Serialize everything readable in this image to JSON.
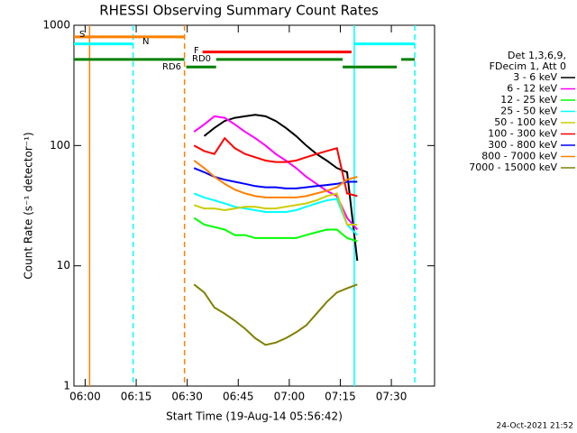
{
  "chart_data": {
    "type": "line",
    "title": "RHESSI Observing Summary Count Rates",
    "x_label": "Start Time (19-Aug-14 05:56:42)",
    "y_label": "Count Rate (s⁻¹ detector⁻¹)",
    "log_y": true,
    "xlim": [
      356.7,
      462.7
    ],
    "ylim": [
      1,
      1000
    ],
    "xticks": [
      {
        "value": 360,
        "label": "06:00"
      },
      {
        "value": 375,
        "label": "06:15"
      },
      {
        "value": 390,
        "label": "06:30"
      },
      {
        "value": 405,
        "label": "06:45"
      },
      {
        "value": 420,
        "label": "07:00"
      },
      {
        "value": 435,
        "label": "07:15"
      },
      {
        "value": 450,
        "label": "07:30"
      }
    ],
    "yticks": [
      1,
      10,
      100,
      1000
    ],
    "legend_header": [
      "Det 1,3,6,9,",
      "FDecim 1, Att 0"
    ],
    "x": [
      392,
      395,
      398,
      401,
      404,
      407,
      410,
      413,
      416,
      419,
      422,
      425,
      428,
      431,
      434,
      437,
      440,
      443
    ],
    "series": [
      {
        "name": "3 - 6 keV",
        "color": "#000000",
        "values": [
          null,
          120,
          140,
          160,
          170,
          175,
          180,
          175,
          160,
          140,
          120,
          100,
          85,
          75,
          65,
          60,
          11,
          null
        ]
      },
      {
        "name": "6 - 12 keV",
        "color": "#ff00ff",
        "values": [
          130,
          150,
          175,
          170,
          150,
          130,
          115,
          100,
          85,
          75,
          65,
          55,
          48,
          42,
          38,
          25,
          20,
          null
        ]
      },
      {
        "name": "12 - 25 keV",
        "color": "#00ff00",
        "values": [
          25,
          22,
          21,
          20,
          18,
          18,
          17,
          17,
          17,
          17,
          17,
          18,
          19,
          20,
          20,
          17,
          16,
          null
        ]
      },
      {
        "name": "25 - 50 keV",
        "color": "#00ffff",
        "values": [
          40,
          37,
          35,
          33,
          31,
          30,
          29,
          28,
          28,
          28,
          29,
          31,
          33,
          35,
          36,
          22,
          18,
          null
        ]
      },
      {
        "name": "50 - 100 keV",
        "color": "#cccc00",
        "values": [
          32,
          30,
          30,
          29,
          30,
          31,
          31,
          30,
          30,
          31,
          32,
          33,
          35,
          38,
          40,
          22,
          22,
          null
        ]
      },
      {
        "name": "100 - 300 keV",
        "color": "#ff0000",
        "values": [
          100,
          90,
          85,
          115,
          95,
          85,
          80,
          75,
          73,
          73,
          75,
          80,
          85,
          90,
          95,
          40,
          38,
          null
        ]
      },
      {
        "name": "300 - 800 keV",
        "color": "#0000ff",
        "values": [
          65,
          60,
          55,
          52,
          50,
          48,
          46,
          45,
          45,
          44,
          44,
          45,
          46,
          47,
          48,
          50,
          50,
          null
        ]
      },
      {
        "name": "800 - 7000 keV",
        "color": "#ff8000",
        "values": [
          75,
          65,
          55,
          48,
          43,
          40,
          38,
          37,
          37,
          37,
          37,
          38,
          40,
          42,
          45,
          52,
          55,
          null
        ]
      },
      {
        "name": "7000 - 15000 keV",
        "color": "#808000",
        "values": [
          7,
          6,
          4.5,
          4,
          3.5,
          3,
          2.5,
          2.2,
          2.3,
          2.5,
          2.8,
          3.2,
          4,
          5,
          6,
          6.5,
          7,
          null
        ]
      }
    ],
    "states": [
      {
        "label": "S",
        "color": "#ff8000",
        "level": 800,
        "segments": [
          [
            356.7,
            389.2
          ]
        ]
      },
      {
        "label": "N",
        "color": "#00ffff",
        "level": 700,
        "segments": [
          [
            356.7,
            374.1
          ],
          [
            439.1,
            456.9
          ]
        ]
      },
      {
        "label": "F",
        "color": "#ff0000",
        "level": 600,
        "segments": [
          [
            394.5,
            438.3
          ]
        ]
      },
      {
        "label": "RD0",
        "color": "#008000",
        "level": 520,
        "segments": [
          [
            356.7,
            389.2
          ],
          [
            398.5,
            435.7
          ],
          [
            452.9,
            456.9
          ]
        ]
      },
      {
        "label": "RD6",
        "color": "#008000",
        "level": 450,
        "segments": [
          [
            389.7,
            398.5
          ],
          [
            435.7,
            451.6
          ]
        ]
      }
    ],
    "markers": [
      {
        "x": 361.3,
        "color": "#ff8000",
        "dashed": false
      },
      {
        "x": 389.2,
        "color": "#ff8000",
        "dashed": true
      },
      {
        "x": 374.1,
        "color": "#00ffff",
        "dashed": true
      },
      {
        "x": 439.1,
        "color": "#00ffff",
        "dashed": false
      },
      {
        "x": 456.9,
        "color": "#00ffff",
        "dashed": true
      }
    ],
    "footer": "24-Oct-2021 21:52"
  }
}
